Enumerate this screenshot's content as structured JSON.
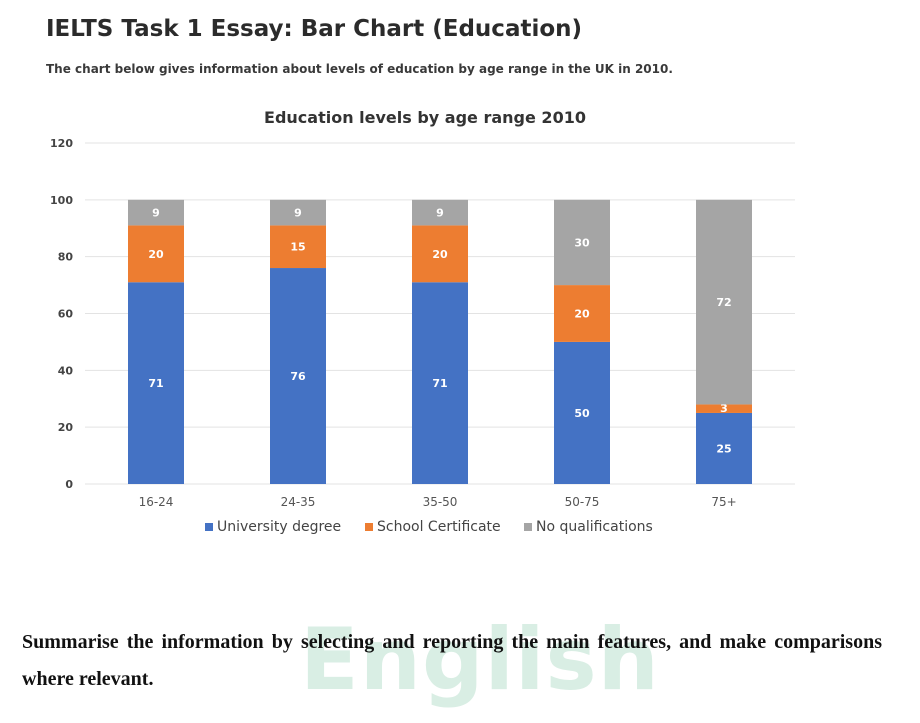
{
  "page": {
    "title": "IELTS Task 1 Essay: Bar Chart (Education)",
    "subtitle": "The chart below gives information about levels of education by age range in the UK in 2010.",
    "instructions": "Summarise the information by selecting and reporting the main features, and make comparisons where relevant.",
    "watermark": "English"
  },
  "chart_data": {
    "type": "bar",
    "stacked": true,
    "title": "Education levels by age range 2010",
    "xlabel": "",
    "ylabel": "",
    "ylim": [
      0,
      120
    ],
    "yticks": [
      0,
      20,
      40,
      60,
      80,
      100,
      120
    ],
    "grid": true,
    "legend_position": "bottom",
    "categories": [
      "16-24",
      "24-35",
      "35-50",
      "50-75",
      "75+"
    ],
    "series": [
      {
        "name": "University degree",
        "color": "#4472c4",
        "values": [
          71,
          76,
          71,
          50,
          25
        ]
      },
      {
        "name": "School Certificate",
        "color": "#ed7d31",
        "values": [
          20,
          15,
          20,
          20,
          3
        ]
      },
      {
        "name": "No qualifications",
        "color": "#a5a5a5",
        "values": [
          9,
          9,
          9,
          30,
          72
        ]
      }
    ]
  }
}
